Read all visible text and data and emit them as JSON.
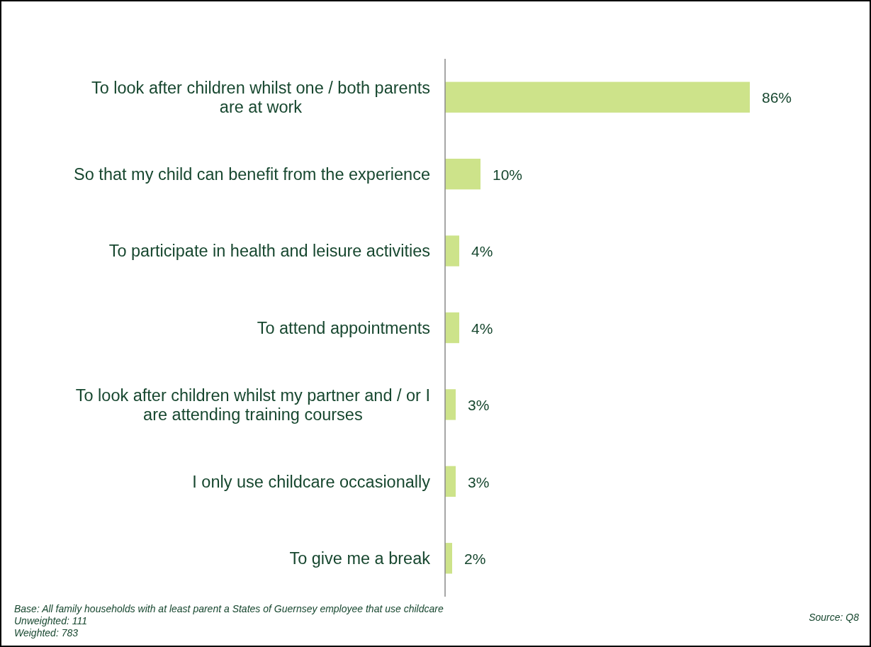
{
  "chart_data": {
    "type": "bar",
    "orientation": "horizontal",
    "categories": [
      "To look after children whilst one / both parents are at work",
      "So that my child can benefit from the experience",
      "To participate in health and leisure activities",
      "To attend appointments",
      "To look after children whilst my partner and / or I are attending training courses",
      "I only use childcare occasionally",
      "To give me a break"
    ],
    "values": [
      86,
      10,
      4,
      4,
      3,
      3,
      2
    ],
    "value_labels": [
      "86%",
      "10%",
      "4%",
      "4%",
      "3%",
      "3%",
      "2%"
    ],
    "color": "#cde38a",
    "annotations": [
      "Base: All family households with at least parent a States of Guernsey employee that use childcare",
      "Unweighted: 111",
      "Weighted: 783",
      "Source:  Q8"
    ]
  }
}
